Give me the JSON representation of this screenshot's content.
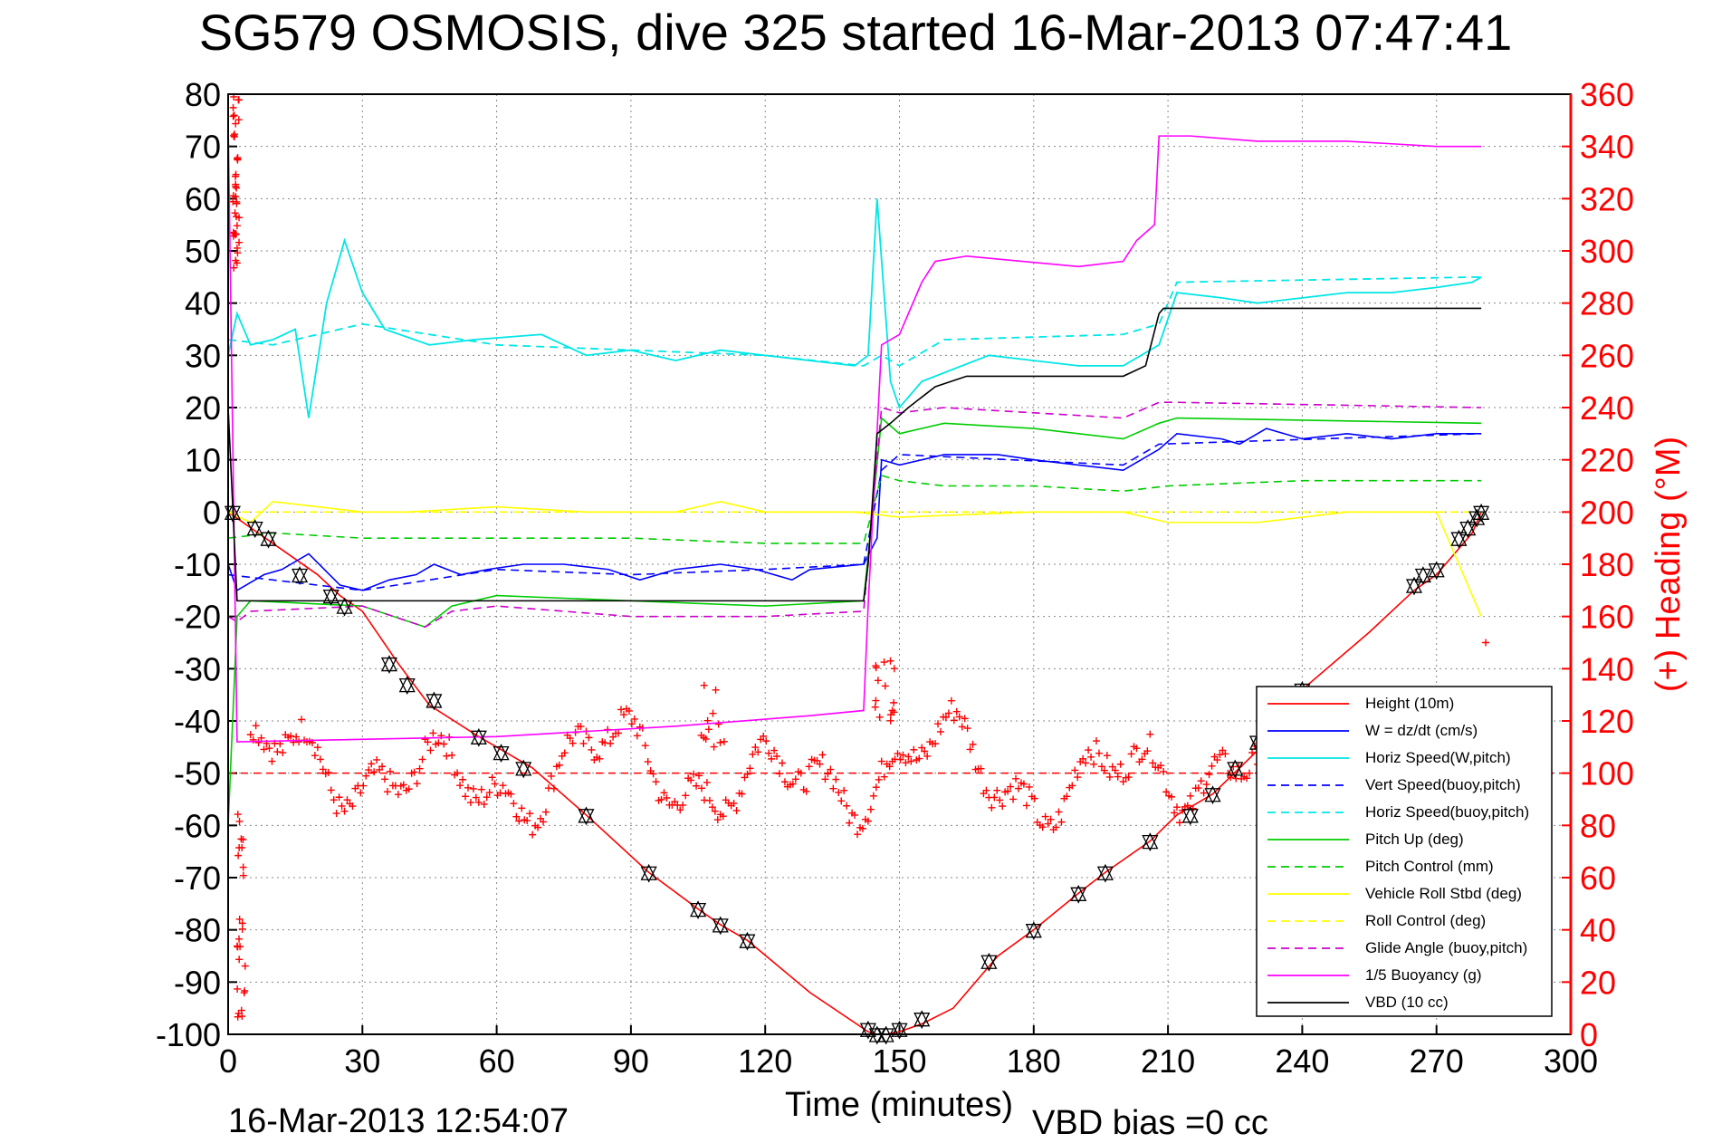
{
  "chart_data": {
    "type": "line",
    "title": "SG579 OSMOSIS, dive 325 started 16-Mar-2013 07:47:41",
    "xlabel": "Time (minutes)",
    "ylabel": "",
    "ylabel_right": "(+) Heading (°M)",
    "footer_timestamp": "16-Mar-2013 12:54:07",
    "footer_note": "VBD bias =0 cc",
    "xlim": [
      0,
      300
    ],
    "ylim": [
      -100,
      80
    ],
    "ylim_right": [
      0,
      360
    ],
    "x_ticks": [
      "0",
      "30",
      "60",
      "90",
      "120",
      "150",
      "180",
      "210",
      "240",
      "270",
      "300"
    ],
    "y_ticks": [
      "80",
      "70",
      "60",
      "50",
      "40",
      "30",
      "20",
      "10",
      "0",
      "-10",
      "-20",
      "-30",
      "-40",
      "-50",
      "-60",
      "-70",
      "-80",
      "-90",
      "-100"
    ],
    "y_ticks_right": [
      "360",
      "340",
      "320",
      "300",
      "280",
      "260",
      "240",
      "220",
      "200",
      "180",
      "160",
      "140",
      "120",
      "100",
      "80",
      "60",
      "40",
      "20",
      "0"
    ],
    "grid": true,
    "legend_position": "lower-right",
    "series": [
      {
        "name": "Height (10m)",
        "color": "#ff0000",
        "style": "solid",
        "x": [
          0,
          5,
          10,
          20,
          25,
          30,
          38,
          45,
          56,
          62,
          68,
          80,
          94,
          105,
          110,
          116,
          130,
          143,
          145,
          147,
          150,
          155,
          162,
          172,
          180,
          190,
          196,
          206,
          212,
          220,
          226,
          232,
          240,
          255,
          265,
          270,
          278,
          280
        ],
        "y": [
          0,
          -3,
          -6,
          -12,
          -16,
          -19,
          -29,
          -37,
          -43,
          -46,
          -49,
          -58,
          -69,
          -76,
          -79,
          -82,
          -92,
          -99.5,
          -100,
          -100,
          -99.5,
          -98,
          -95,
          -85,
          -80,
          -73,
          -69,
          -63,
          -58,
          -54,
          -49,
          -44,
          -34,
          -23,
          -15,
          -12,
          -4,
          0
        ]
      },
      {
        "name": "W = dz/dt (cm/s)",
        "color": "#0000ff",
        "style": "solid",
        "x": [
          0,
          2,
          4,
          8,
          12,
          18,
          25,
          30,
          36,
          42,
          46,
          52,
          58,
          66,
          75,
          85,
          92,
          100,
          110,
          118,
          126,
          130,
          142,
          145,
          146,
          150,
          160,
          172,
          180,
          190,
          200,
          208,
          212,
          222,
          226,
          232,
          240,
          250,
          260,
          270,
          280
        ],
        "y": [
          -10,
          -15,
          -14,
          -12,
          -11,
          -8,
          -14,
          -15,
          -13,
          -12,
          -10,
          -12,
          -11,
          -10,
          -10,
          -11,
          -13,
          -11,
          -10,
          -11,
          -13,
          -11,
          -10,
          -5,
          10,
          9,
          11,
          11,
          10,
          9,
          8,
          12,
          15,
          14,
          13,
          16,
          14,
          15,
          14,
          15,
          15
        ]
      },
      {
        "name": "Horiz Speed(W,pitch)",
        "color": "#00e6e6",
        "style": "solid",
        "x": [
          0,
          2,
          5,
          10,
          15,
          18,
          22,
          26,
          30,
          35,
          45,
          55,
          70,
          80,
          90,
          100,
          110,
          120,
          130,
          140,
          143,
          145,
          148,
          150,
          155,
          170,
          180,
          190,
          200,
          208,
          212,
          222,
          230,
          240,
          250,
          260,
          270,
          278,
          280
        ],
        "y": [
          30,
          38,
          32,
          33,
          35,
          18,
          40,
          52,
          42,
          35,
          32,
          33,
          34,
          30,
          31,
          29,
          31,
          30,
          29,
          28,
          30,
          60,
          25,
          20,
          25,
          30,
          29,
          28,
          28,
          32,
          42,
          41,
          40,
          41,
          42,
          42,
          43,
          44,
          45
        ]
      },
      {
        "name": "Vert Speed(buoy,pitch)",
        "color": "#0000ff",
        "style": "dashed",
        "x": [
          0,
          10,
          30,
          60,
          90,
          120,
          142,
          146,
          150,
          200,
          208,
          280
        ],
        "y": [
          -12,
          -13,
          -15,
          -11,
          -12,
          -11,
          -10,
          8,
          11,
          9,
          13,
          15
        ]
      },
      {
        "name": "Horiz Speed(buoy,pitch)",
        "color": "#00e6e6",
        "style": "dashed",
        "x": [
          0,
          10,
          30,
          60,
          90,
          120,
          142,
          146,
          150,
          160,
          200,
          208,
          212,
          280
        ],
        "y": [
          33,
          32,
          36,
          32,
          31,
          30,
          28,
          30,
          28,
          33,
          34,
          36,
          44,
          45
        ]
      },
      {
        "name": "Pitch Up (deg)",
        "color": "#00cc00",
        "style": "solid",
        "x": [
          0,
          2,
          5,
          30,
          44,
          50,
          60,
          90,
          120,
          142,
          146,
          150,
          160,
          180,
          200,
          208,
          212,
          280
        ],
        "y": [
          -60,
          -20,
          -17,
          -18,
          -22,
          -18,
          -16,
          -17,
          -18,
          -17,
          18,
          15,
          17,
          16,
          14,
          17,
          18,
          17
        ]
      },
      {
        "name": "Pitch Control (mm)",
        "color": "#00cc00",
        "style": "dashed",
        "x": [
          0,
          10,
          30,
          60,
          90,
          120,
          142,
          146,
          150,
          160,
          180,
          200,
          210,
          240,
          280
        ],
        "y": [
          -5,
          -4,
          -5,
          -5,
          -5,
          -6,
          -6,
          7,
          6,
          5,
          5,
          4,
          5,
          6,
          6
        ]
      },
      {
        "name": "Vehicle Roll Stbd (deg)",
        "color": "#ffff00",
        "style": "solid",
        "x": [
          0,
          5,
          10,
          20,
          30,
          40,
          60,
          80,
          100,
          110,
          120,
          140,
          150,
          180,
          200,
          210,
          230,
          250,
          270,
          280
        ],
        "y": [
          0,
          -2,
          2,
          1,
          0,
          0,
          1,
          0,
          0,
          2,
          0,
          0,
          -1,
          0,
          0,
          -2,
          -2,
          0,
          0,
          -20
        ]
      },
      {
        "name": "Roll Control (deg)",
        "color": "#ffff00",
        "style": "dashed",
        "x": [
          0,
          10,
          30,
          60,
          90,
          120,
          150,
          180,
          210,
          240,
          270,
          280
        ],
        "y": [
          0,
          0,
          0,
          0,
          0,
          0,
          0,
          0,
          0,
          0,
          0,
          0
        ]
      },
      {
        "name": "Glide Angle (buoy,pitch)",
        "color": "#cc00cc",
        "style": "dashed",
        "x": [
          0,
          2,
          5,
          30,
          44,
          50,
          60,
          90,
          120,
          142,
          146,
          150,
          160,
          180,
          200,
          208,
          212,
          280
        ],
        "y": [
          -20,
          -21,
          -19,
          -18,
          -22,
          -19,
          -18,
          -20,
          -20,
          -19,
          20,
          19,
          20,
          19,
          18,
          21,
          21,
          20
        ]
      },
      {
        "name": "1/5 Buoyancy (g)",
        "color": "#ff00ff",
        "style": "solid",
        "x": [
          0,
          2,
          60,
          100,
          130,
          142,
          143,
          146,
          150,
          155,
          158,
          165,
          190,
          200,
          203,
          207,
          208,
          215,
          230,
          250,
          270,
          280
        ],
        "y": [
          75,
          -44,
          -43,
          -41,
          -39,
          -38,
          -18,
          32,
          34,
          44,
          48,
          49,
          47,
          48,
          52,
          55,
          72,
          72,
          71,
          71,
          70,
          70
        ]
      },
      {
        "name": "VBD (10 cc)",
        "color": "#000000",
        "style": "solid",
        "x": [
          0,
          2,
          142,
          143,
          145,
          148,
          152,
          158,
          165,
          175,
          200,
          205,
          208,
          209,
          230,
          280
        ],
        "y": [
          20,
          -17,
          -17,
          -10,
          15,
          17,
          20,
          24,
          26,
          26,
          26,
          28,
          38,
          39,
          39,
          39
        ]
      }
    ],
    "heading_series": {
      "name": "Heading (°M)",
      "color": "#ff0000",
      "style": "plus-markers",
      "reference": 100
    },
    "triangle_markers": {
      "color": "#000000",
      "x": [
        1,
        6,
        9,
        16,
        23,
        26,
        36,
        40,
        46,
        56,
        61,
        66,
        80,
        94,
        105,
        110,
        116,
        143,
        145,
        147,
        150,
        155,
        170,
        180,
        190,
        196,
        206,
        215,
        220,
        225,
        230,
        240,
        265,
        267,
        270,
        275,
        277,
        279,
        280
      ],
      "y": [
        0,
        -3,
        -5,
        -12,
        -16,
        -18,
        -29,
        -33,
        -36,
        -43,
        -46,
        -49,
        -58,
        -69,
        -76,
        -79,
        -82,
        -99,
        -100,
        -100,
        -99,
        -97,
        -86,
        -80,
        -73,
        -69,
        -63,
        -58,
        -54,
        -49,
        -44,
        -34,
        -14,
        -12,
        -11,
        -5,
        -3,
        -1,
        0
      ]
    }
  }
}
